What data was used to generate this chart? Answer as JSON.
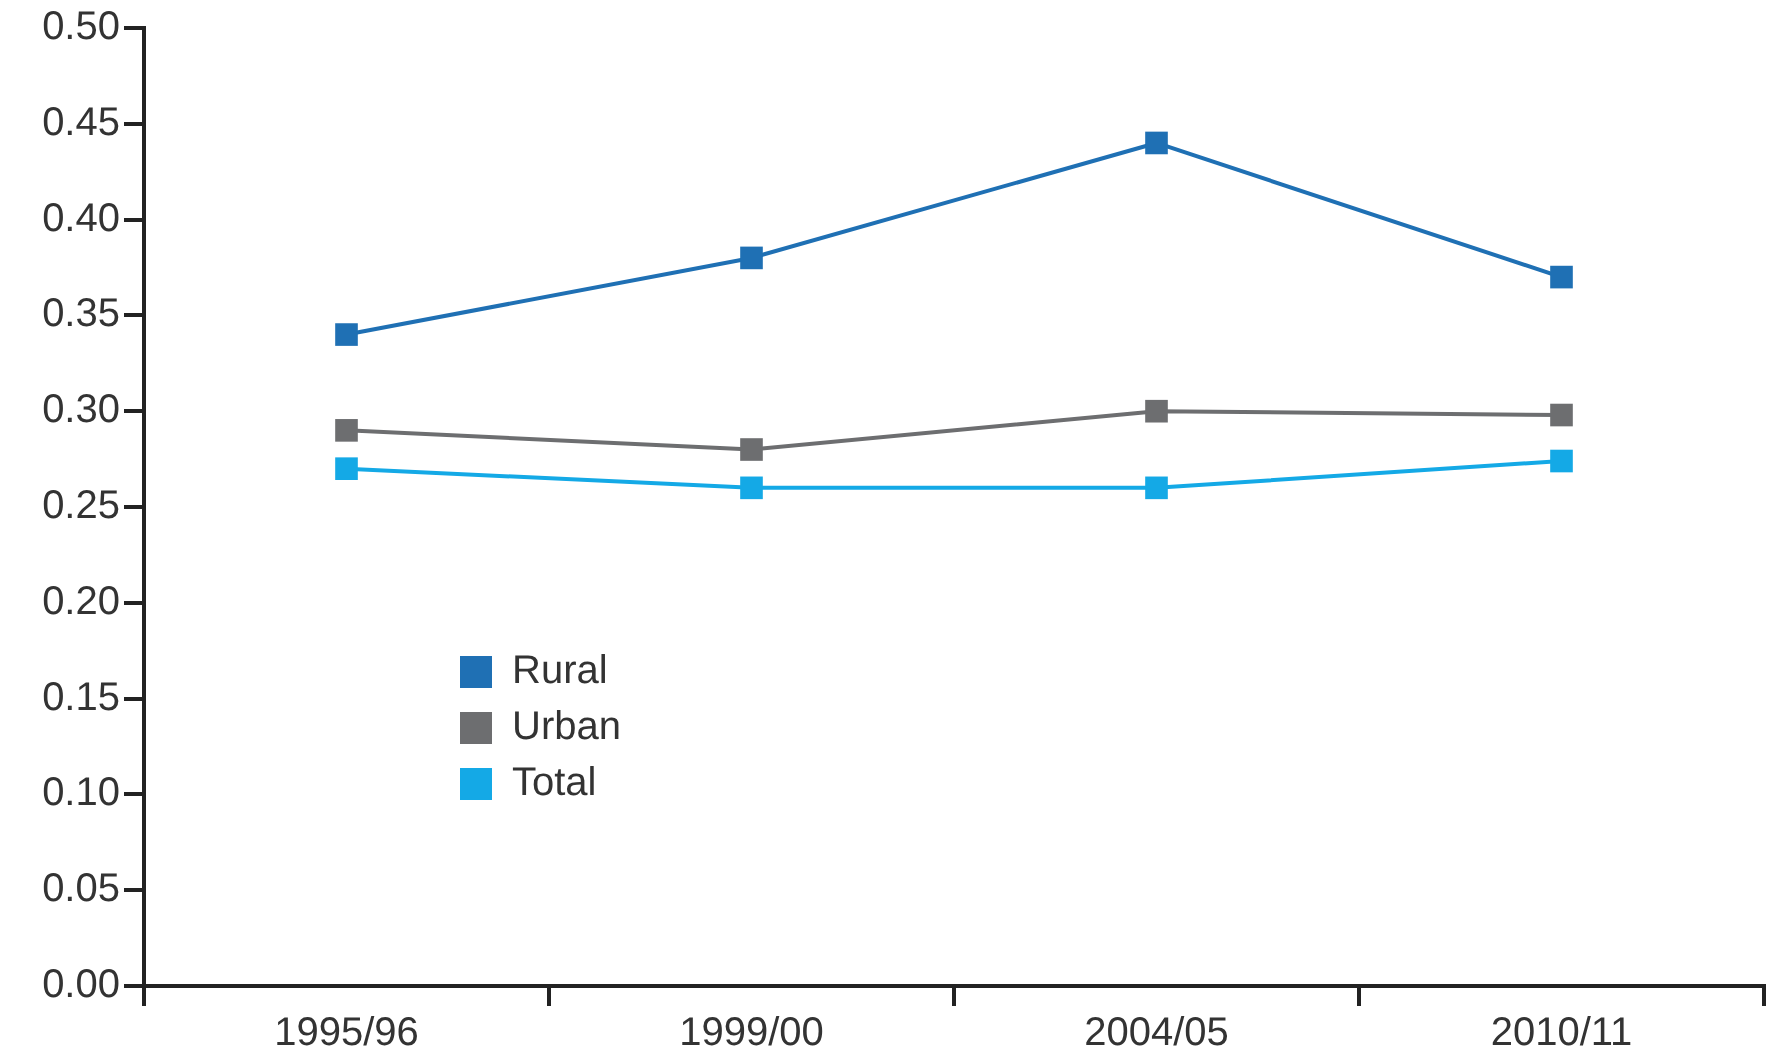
{
  "chart_data": {
    "type": "line",
    "categories": [
      "1995/96",
      "1999/00",
      "2004/05",
      "2010/11"
    ],
    "series": [
      {
        "name": "Rural",
        "color": "#1f70b4",
        "values": [
          0.34,
          0.38,
          0.44,
          0.37
        ]
      },
      {
        "name": "Urban",
        "color": "#6d6e70",
        "values": [
          0.29,
          0.28,
          0.3,
          0.298
        ]
      },
      {
        "name": "Total",
        "color": "#14a9e6",
        "values": [
          0.27,
          0.26,
          0.26,
          0.274
        ]
      }
    ],
    "ylim": [
      0,
      0.5
    ],
    "yticks": [
      {
        "value": 0,
        "label": "0.00"
      },
      {
        "value": 0.05,
        "label": "0.05"
      },
      {
        "value": 0.1,
        "label": "0.10"
      },
      {
        "value": 0.15,
        "label": "0.15"
      },
      {
        "value": 0.2,
        "label": "0.20"
      },
      {
        "value": 0.25,
        "label": "0.25"
      },
      {
        "value": 0.3,
        "label": "0.30"
      },
      {
        "value": 0.35,
        "label": "0.35"
      },
      {
        "value": 0.4,
        "label": "0.40"
      },
      {
        "value": 0.45,
        "label": "0.45"
      },
      {
        "value": 0.5,
        "label": "0.50"
      }
    ],
    "grid": false,
    "legend": "bottom left",
    "marker": "square",
    "line_style": "solid"
  }
}
